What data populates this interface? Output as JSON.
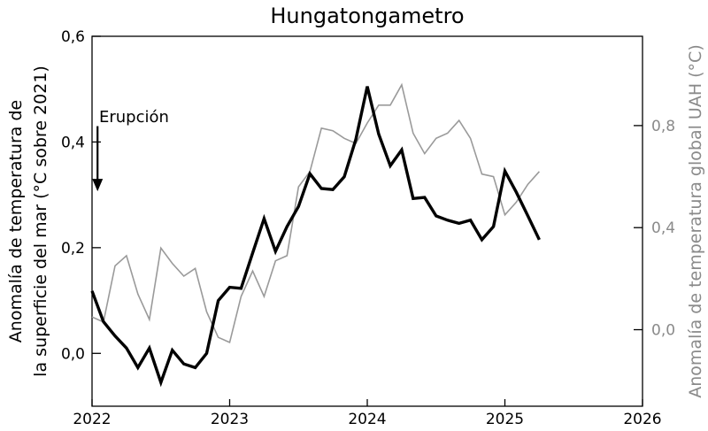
{
  "chart_data": {
    "type": "line",
    "title": "Hungatongametro",
    "xlabel": "",
    "ylabel_left_line1": "Anomalía de temperatura de",
    "ylabel_left_line2": "la superficie del mar (°C sobre 2021)",
    "ylabel_right": "Anomalía de temperatura global UAH (°C)",
    "xlim": [
      2022,
      2026
    ],
    "ylim_left": [
      -0.1,
      0.6
    ],
    "ylim_right": [
      -0.3,
      1.15
    ],
    "x_ticks": [
      2022,
      2023,
      2024,
      2025,
      2026
    ],
    "x_tick_labels": [
      "2022",
      "2023",
      "2024",
      "2025",
      "2026"
    ],
    "y_left_ticks": [
      0.0,
      0.2,
      0.4,
      0.6
    ],
    "y_left_tick_labels": [
      "0,0",
      "0,2",
      "0,4",
      "0,6"
    ],
    "y_right_ticks": [
      0.0,
      0.4,
      0.8
    ],
    "y_right_tick_labels": [
      "0,0",
      "0,4",
      "0,8"
    ],
    "grid": false,
    "annotation": {
      "text": "Erupción",
      "x": 2022.04,
      "y_from": 0.43,
      "y_to": 0.31
    },
    "series": [
      {
        "axis": "left",
        "color": "#000000",
        "x": [
          2022.0,
          2022.083,
          2022.167,
          2022.25,
          2022.333,
          2022.417,
          2022.5,
          2022.583,
          2022.667,
          2022.75,
          2022.833,
          2022.917,
          2023.0,
          2023.083,
          2023.167,
          2023.25,
          2023.333,
          2023.417,
          2023.5,
          2023.583,
          2023.667,
          2023.75,
          2023.833,
          2023.917,
          2024.0,
          2024.083,
          2024.167,
          2024.25,
          2024.333,
          2024.417,
          2024.5,
          2024.583,
          2024.667,
          2024.75,
          2024.833,
          2024.917,
          2025.0,
          2025.083,
          2025.167,
          2025.25
        ],
        "values": [
          0.118,
          0.06,
          0.033,
          0.01,
          -0.027,
          0.01,
          -0.055,
          0.006,
          -0.02,
          -0.027,
          0.0,
          0.1,
          0.125,
          0.123,
          0.19,
          0.255,
          0.193,
          0.24,
          0.278,
          0.34,
          0.312,
          0.31,
          0.334,
          0.405,
          0.505,
          0.415,
          0.355,
          0.385,
          0.293,
          0.295,
          0.26,
          0.252,
          0.246,
          0.252,
          0.215,
          0.24,
          0.345,
          0.305,
          0.26,
          0.215
        ]
      },
      {
        "axis": "right",
        "color": "#9a9a9a",
        "x": [
          2022.0,
          2022.083,
          2022.167,
          2022.25,
          2022.333,
          2022.417,
          2022.5,
          2022.583,
          2022.667,
          2022.75,
          2022.833,
          2022.917,
          2023.0,
          2023.083,
          2023.167,
          2023.25,
          2023.333,
          2023.417,
          2023.5,
          2023.583,
          2023.667,
          2023.75,
          2023.833,
          2023.917,
          2024.0,
          2024.083,
          2024.167,
          2024.25,
          2024.333,
          2024.417,
          2024.5,
          2024.583,
          2024.667,
          2024.75,
          2024.833,
          2024.917,
          2025.0,
          2025.083,
          2025.167,
          2025.25
        ],
        "values": [
          0.05,
          0.03,
          0.25,
          0.29,
          0.14,
          0.04,
          0.32,
          0.26,
          0.21,
          0.24,
          0.07,
          -0.03,
          -0.05,
          0.13,
          0.23,
          0.13,
          0.27,
          0.29,
          0.56,
          0.62,
          0.79,
          0.78,
          0.75,
          0.73,
          0.81,
          0.88,
          0.88,
          0.96,
          0.77,
          0.69,
          0.75,
          0.77,
          0.82,
          0.75,
          0.61,
          0.6,
          0.45,
          0.5,
          0.57,
          0.62
        ]
      }
    ]
  }
}
